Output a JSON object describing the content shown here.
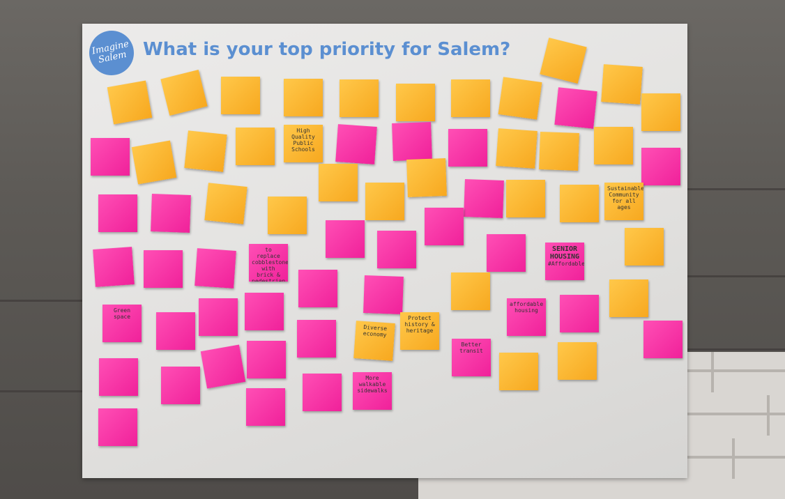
{
  "poster": {
    "logo_line1": "Imagine",
    "logo_line2": "Salem",
    "title": "What is your top priority for Salem?"
  },
  "notes": {
    "high_quality": "High Quality Public Schools",
    "sustainable": "Sustainable Community for all ages",
    "senior_housing": "SENIOR HOUSING",
    "affordable": "#Affordable",
    "pedestrian": "to replace cobblestones with brick & pedestrian safety",
    "more_parks": "More walkable sidewalks",
    "affordable_housing": "affordable housing",
    "more_diversity": "Diverse economy",
    "protect_heritage": "Protect history & heritage",
    "green_space": "Green space",
    "transit": "Better transit"
  }
}
